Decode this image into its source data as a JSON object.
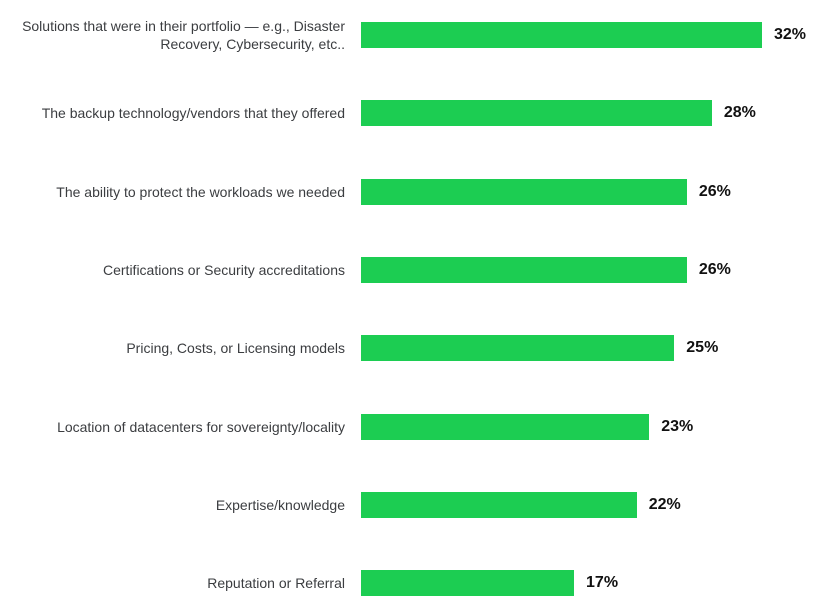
{
  "chart_data": {
    "type": "bar",
    "orientation": "horizontal",
    "categories": [
      "Solutions that were in their portfolio — e.g., Disaster\nRecovery, Cybersecurity, etc..",
      "The backup technology/vendors that they offered",
      "The ability to protect the workloads we needed",
      "Certifications or Security accreditations",
      "Pricing, Costs, or Licensing models",
      "Location of datacenters for sovereignty/locality",
      "Expertise/knowledge",
      "Reputation or Referral"
    ],
    "values": [
      32,
      28,
      26,
      26,
      25,
      23,
      22,
      17
    ],
    "value_labels": [
      "32%",
      "28%",
      "26%",
      "26%",
      "25%",
      "23%",
      "22%",
      "17%"
    ],
    "xlim": [
      0,
      32
    ],
    "grid": false,
    "bar_color": "#1ccd52"
  }
}
